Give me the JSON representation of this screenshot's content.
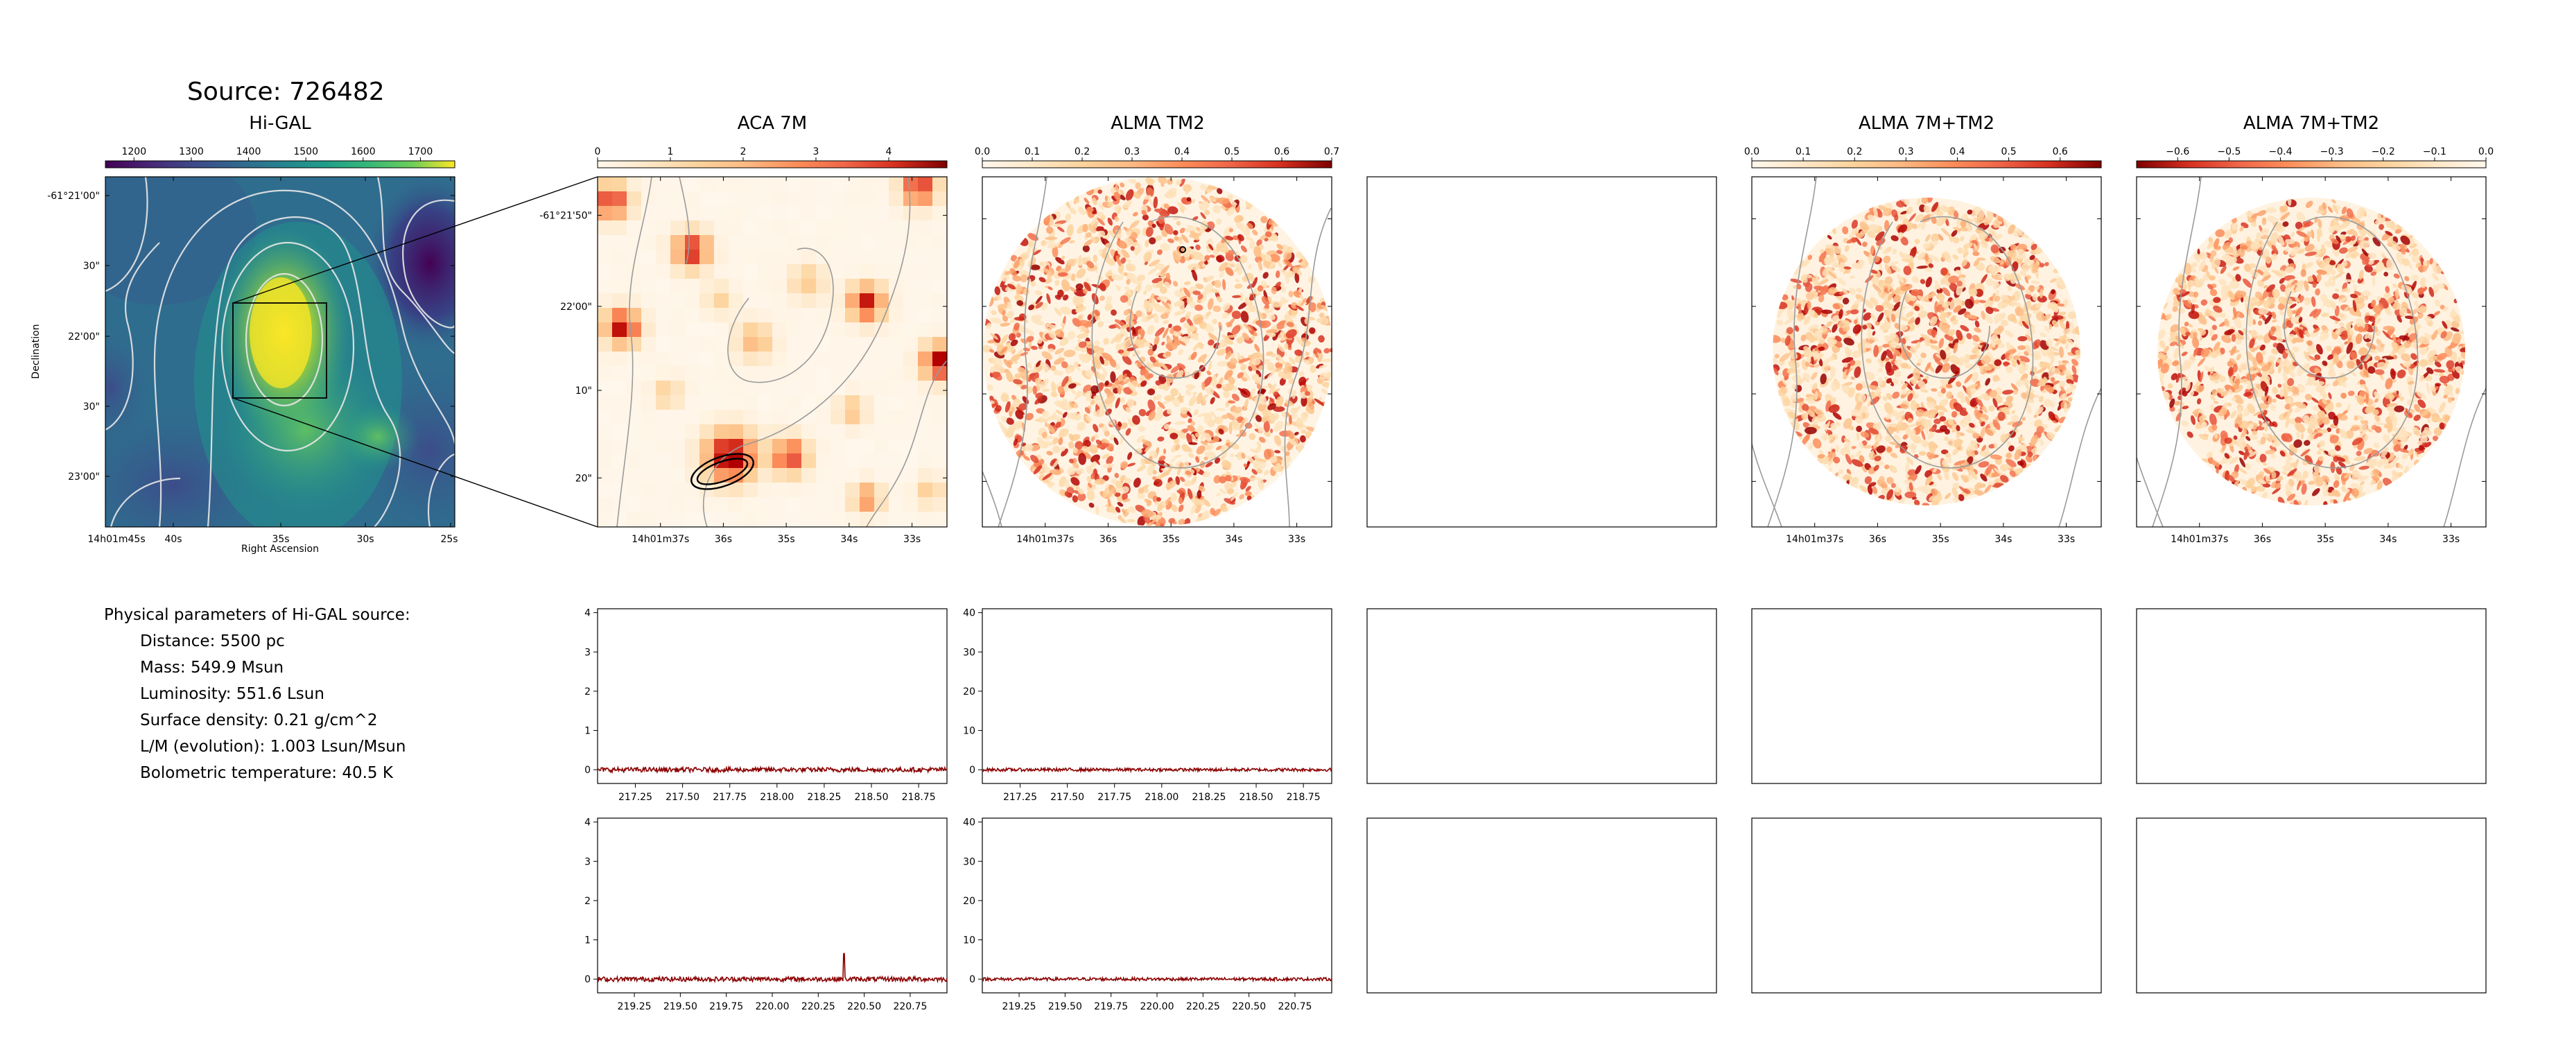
{
  "source_title": "Source: 726482",
  "params": {
    "heading": "Physical parameters of Hi-GAL source:",
    "lines": [
      "Distance: 5500 pc",
      "Mass: 549.9 Msun",
      "Luminosity: 551.6 Lsun",
      "Surface density: 0.21 g/cm^2",
      "L/M (evolution): 1.003 Lsun/Msun",
      "Bolometric temperature: 40.5 K"
    ]
  },
  "colors": {
    "viridis_low": "#440154",
    "viridis_high": "#fde725",
    "orrd_low": "#fff7ec",
    "orrd_high": "#7f0000",
    "spectrum_line": "#8b0000",
    "contour_grey": "#a0a0a0",
    "contour_white": "#e8e8e8"
  },
  "chart_data": [
    {
      "type": "heatmap",
      "title": "Hi-GAL",
      "colormap": "viridis",
      "colorbar_ticks": [
        "1200",
        "1300",
        "1400",
        "1500",
        "1600",
        "1700"
      ],
      "colorbar_range": [
        1150,
        1760
      ],
      "xlabel": "Right Ascension",
      "ylabel": "Declination",
      "x_ticks": [
        "14h01m45s",
        "40s",
        "35s",
        "30s",
        "25s"
      ],
      "y_ticks": [
        "-61°21'00\"",
        "30\"",
        "22'00\"",
        "30\"",
        "23'00\""
      ]
    },
    {
      "type": "heatmap",
      "title": "ACA 7M",
      "colormap": "OrRd",
      "colorbar_ticks": [
        "0",
        "1",
        "2",
        "3",
        "4"
      ],
      "colorbar_range": [
        0,
        4.8
      ],
      "x_ticks": [
        "14h01m37s",
        "36s",
        "35s",
        "34s",
        "33s"
      ],
      "y_ticks": [
        "-61°21'50\"",
        "22'00\"",
        "10\"",
        "20\""
      ]
    },
    {
      "type": "heatmap",
      "title": "ALMA TM2",
      "colormap": "OrRd",
      "colorbar_ticks": [
        "0.0",
        "0.1",
        "0.2",
        "0.3",
        "0.4",
        "0.5",
        "0.6",
        "0.7"
      ],
      "colorbar_range": [
        0,
        0.7
      ],
      "x_ticks": [
        "14h01m37s",
        "36s",
        "35s",
        "34s",
        "33s"
      ]
    },
    {
      "type": "heatmap",
      "title": "ALMA 7M+TM2",
      "colormap": "OrRd",
      "colorbar_ticks": [
        "0.0",
        "0.1",
        "0.2",
        "0.3",
        "0.4",
        "0.5",
        "0.6"
      ],
      "colorbar_range": [
        0,
        0.68
      ],
      "x_ticks": [
        "14h01m37s",
        "36s",
        "35s",
        "34s",
        "33s"
      ]
    },
    {
      "type": "heatmap",
      "title": "ALMA 7M+TM2",
      "colormap": "OrRd_r",
      "colorbar_ticks": [
        "−0.6",
        "−0.5",
        "−0.4",
        "−0.3",
        "−0.2",
        "−0.1",
        "0.0"
      ],
      "colorbar_range": [
        -0.68,
        0
      ],
      "x_ticks": [
        "14h01m37s",
        "36s",
        "35s",
        "34s",
        "33s"
      ]
    },
    {
      "type": "line",
      "panel": "ACA 7M spectrum, window 1",
      "x_ticks": [
        "217.25",
        "217.50",
        "217.75",
        "218.00",
        "218.25",
        "218.50",
        "218.75"
      ],
      "xlim": [
        217.05,
        218.9
      ],
      "y_ticks": [
        "0",
        "1",
        "2",
        "3",
        "4"
      ],
      "ylim": [
        -0.35,
        4.1
      ],
      "series": [
        {
          "baseline": 0,
          "noise": 0.06,
          "peaks": []
        }
      ]
    },
    {
      "type": "line",
      "panel": "ALMA TM2 spectrum, window 1",
      "x_ticks": [
        "217.25",
        "217.50",
        "217.75",
        "218.00",
        "218.25",
        "218.50",
        "218.75"
      ],
      "xlim": [
        217.05,
        218.9
      ],
      "y_ticks": [
        "0",
        "10",
        "20",
        "30",
        "40"
      ],
      "ylim": [
        -3.5,
        41
      ],
      "series": [
        {
          "baseline": 0,
          "noise": 0.4,
          "peaks": []
        }
      ]
    },
    {
      "type": "line",
      "panel": "ACA 7M spectrum, window 2",
      "x_ticks": [
        "219.25",
        "219.50",
        "219.75",
        "220.00",
        "220.25",
        "220.50",
        "220.75"
      ],
      "xlim": [
        219.05,
        220.95
      ],
      "y_ticks": [
        "0",
        "1",
        "2",
        "3",
        "4"
      ],
      "ylim": [
        -0.35,
        4.1
      ],
      "series": [
        {
          "baseline": 0,
          "noise": 0.06,
          "peaks": [
            {
              "x": 220.39,
              "y": 0.65
            }
          ]
        }
      ]
    },
    {
      "type": "line",
      "panel": "ALMA TM2 spectrum, window 2",
      "x_ticks": [
        "219.25",
        "219.50",
        "219.75",
        "220.00",
        "220.25",
        "220.50",
        "220.75"
      ],
      "xlim": [
        219.05,
        220.95
      ],
      "y_ticks": [
        "0",
        "10",
        "20",
        "30",
        "40"
      ],
      "ylim": [
        -3.5,
        41
      ],
      "series": [
        {
          "baseline": 0,
          "noise": 0.4,
          "peaks": []
        }
      ]
    }
  ]
}
